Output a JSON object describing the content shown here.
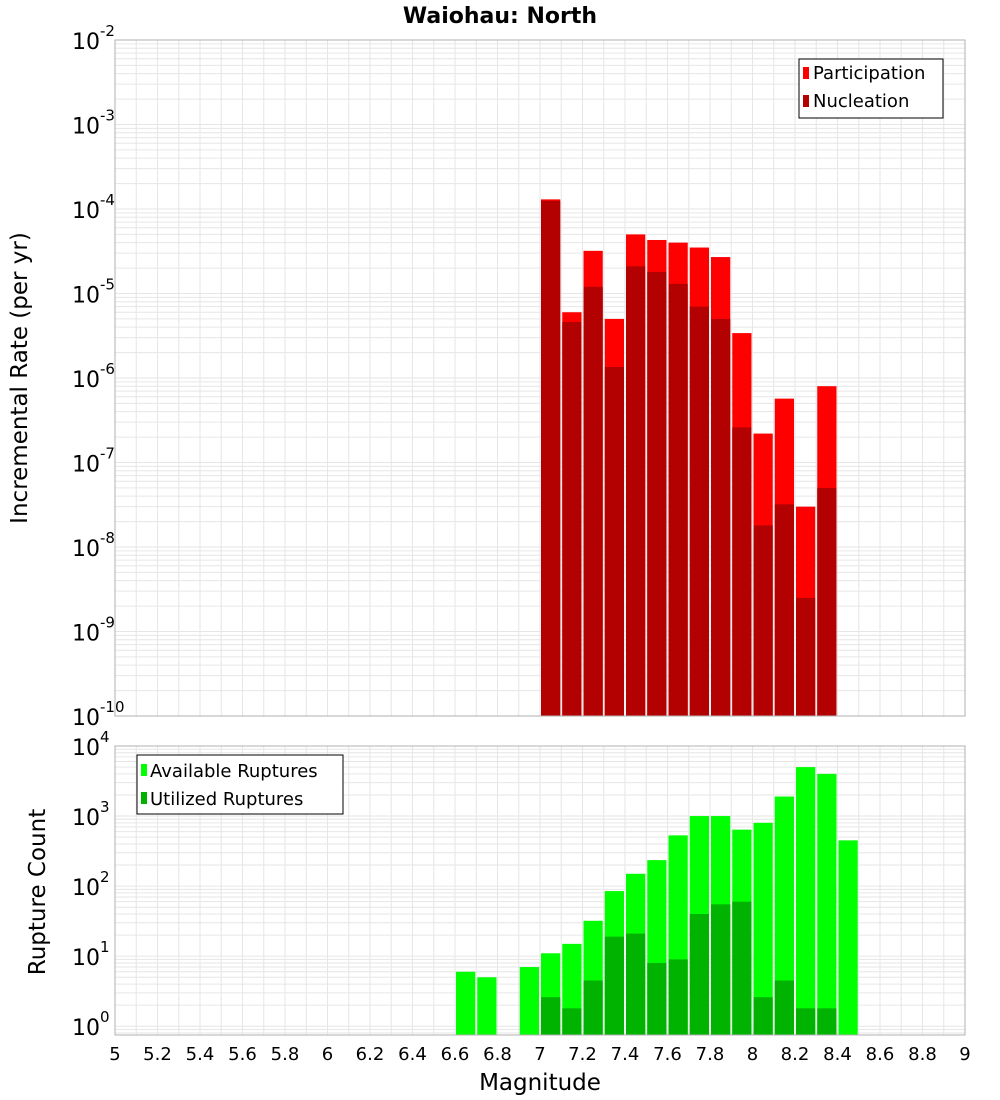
{
  "chart_data": [
    {
      "type": "bar",
      "title": "Waiohau: North",
      "ylabel": "Incremental Rate (per yr)",
      "xlabel": "",
      "xlim": [
        5,
        9
      ],
      "ylim": [
        1e-10,
        0.01
      ],
      "y_scale": "log",
      "grid": true,
      "legend_position": "top-right",
      "bin_width": 0.1,
      "y_tick_exponents": [
        "-2",
        "-3",
        "-4",
        "-5",
        "-6",
        "-7",
        "-8",
        "-9",
        "-10"
      ],
      "series": [
        {
          "name": "Participation",
          "color": "#ff0000",
          "x": [
            7.05,
            7.15,
            7.25,
            7.35,
            7.45,
            7.55,
            7.65,
            7.75,
            7.85,
            7.95,
            8.05,
            8.15,
            8.25,
            8.35
          ],
          "values": [
            0.00013,
            6e-06,
            3.2e-05,
            5e-06,
            5e-05,
            4.3e-05,
            4e-05,
            3.5e-05,
            2.7e-05,
            3.4e-06,
            2.2e-07,
            5.7e-07,
            3e-08,
            8e-07
          ]
        },
        {
          "name": "Nucleation",
          "color": "#b30000",
          "x": [
            7.05,
            7.15,
            7.25,
            7.35,
            7.45,
            7.55,
            7.65,
            7.75,
            7.85,
            7.95,
            8.05,
            8.15,
            8.25,
            8.35
          ],
          "values": [
            0.000125,
            4.6e-06,
            1.2e-05,
            1.35e-06,
            2.1e-05,
            1.8e-05,
            1.3e-05,
            7e-06,
            5e-06,
            2.6e-07,
            1.8e-08,
            3.2e-08,
            2.5e-09,
            5e-08
          ]
        }
      ]
    },
    {
      "type": "bar",
      "title": "",
      "ylabel": "Rupture Count",
      "xlabel": "Magnitude",
      "xlim": [
        5,
        9
      ],
      "ylim": [
        0.75,
        10000
      ],
      "y_scale": "log",
      "grid": true,
      "legend_position": "top-left",
      "bin_width": 0.1,
      "x_ticks": [
        "5",
        "5.2",
        "5.4",
        "5.6",
        "5.8",
        "6",
        "6.2",
        "6.4",
        "6.6",
        "6.8",
        "7",
        "7.2",
        "7.4",
        "7.6",
        "7.8",
        "8",
        "8.2",
        "8.4",
        "8.6",
        "8.8",
        "9"
      ],
      "y_tick_exponents": [
        "4",
        "3",
        "2",
        "1",
        "0"
      ],
      "series": [
        {
          "name": "Available Ruptures",
          "color": "#00ff00",
          "x": [
            6.65,
            6.75,
            6.95,
            7.05,
            7.15,
            7.25,
            7.35,
            7.45,
            7.55,
            7.65,
            7.75,
            7.85,
            7.95,
            8.05,
            8.15,
            8.25,
            8.35,
            8.45
          ],
          "values": [
            6,
            5,
            7,
            11,
            15,
            32,
            85,
            150,
            235,
            530,
            1000,
            1000,
            640,
            800,
            1900,
            5000,
            4000,
            450
          ]
        },
        {
          "name": "Utilized Ruptures",
          "color": "#00b300",
          "x": [
            7.05,
            7.15,
            7.25,
            7.35,
            7.45,
            7.55,
            7.65,
            7.75,
            7.85,
            7.95,
            8.05,
            8.15,
            8.25,
            8.35
          ],
          "values": [
            2.6,
            1.8,
            4.5,
            19,
            21,
            8,
            9,
            40,
            55,
            60,
            2.6,
            4.5,
            1.8,
            1.8
          ]
        }
      ]
    }
  ]
}
